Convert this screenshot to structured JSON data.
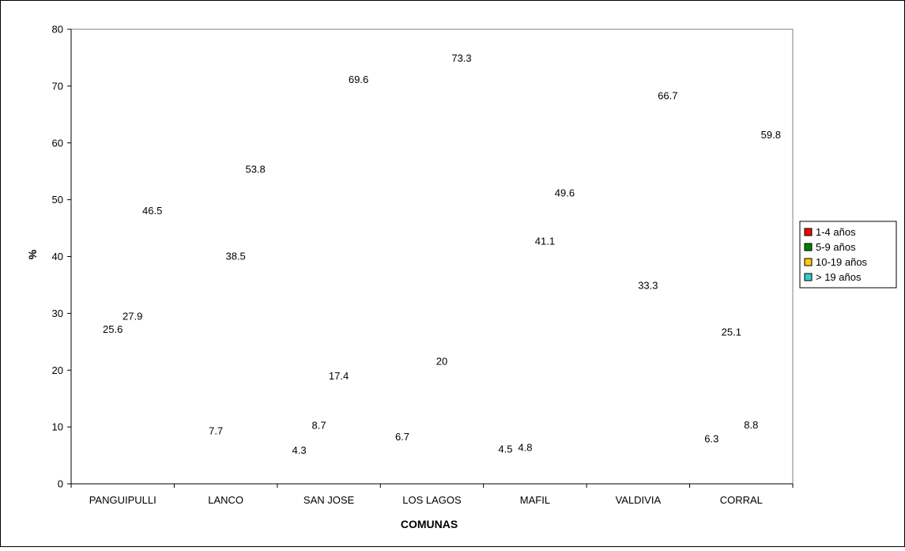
{
  "chart_data": {
    "type": "bar",
    "title": "",
    "xlabel": "COMUNAS",
    "ylabel": "%",
    "ylim": [
      0,
      80
    ],
    "yticks": [
      0,
      10,
      20,
      30,
      40,
      50,
      60,
      70,
      80
    ],
    "grid": false,
    "legend_position": "right",
    "categories": [
      "PANGUIPULLI",
      "LANCO",
      "SAN JOSE",
      "LOS LAGOS",
      "MAFIL",
      "VALDIVIA",
      "CORRAL"
    ],
    "series": [
      {
        "name": "1-4 años",
        "color": "#ff0000",
        "values": [
          null,
          null,
          4.3,
          6.7,
          4.5,
          null,
          6.3
        ]
      },
      {
        "name": "5-9 años",
        "color": "#008000",
        "values": [
          25.6,
          7.7,
          8.7,
          null,
          4.8,
          null,
          25.1
        ]
      },
      {
        "name": "10-19 años",
        "color": "#ffcc00",
        "values": [
          27.9,
          38.5,
          17.4,
          20,
          41.1,
          33.3,
          8.8
        ]
      },
      {
        "name": "> 19 años",
        "color": "#33cccc",
        "values": [
          46.5,
          53.8,
          69.6,
          73.3,
          49.6,
          66.7,
          59.8
        ]
      }
    ]
  }
}
